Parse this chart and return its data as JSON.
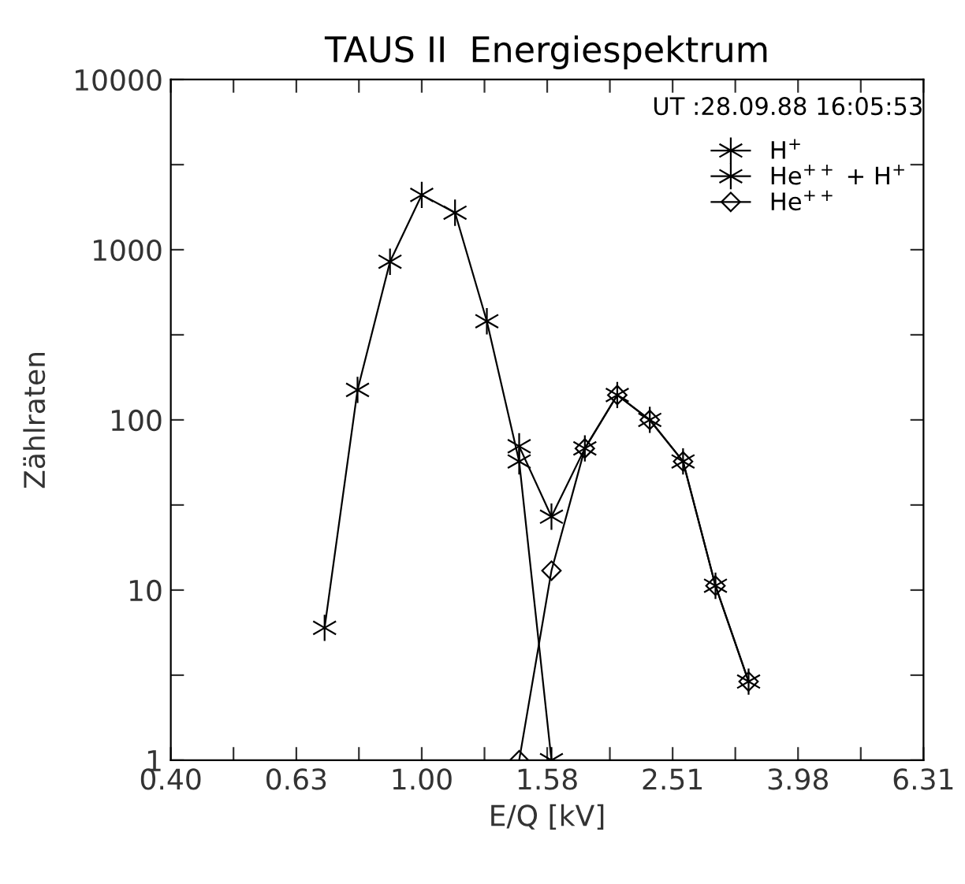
{
  "chart_data": {
    "type": "line",
    "title": "TAUS II  Energiespektrum",
    "xlabel": "E/Q [kV]",
    "ylabel": "Zählraten",
    "log": "xy",
    "grid": false,
    "legend": "top right",
    "annotations": [
      "UT :28.09.88 16:05:53"
    ],
    "xlim": [
      0.398,
      6.31
    ],
    "xticks": [
      {
        "value": 0.398,
        "label": "0.40"
      },
      {
        "value": 0.501,
        "label": null
      },
      {
        "value": 0.631,
        "label": "0.63"
      },
      {
        "value": 0.794,
        "label": null
      },
      {
        "value": 1.0,
        "label": "1.00"
      },
      {
        "value": 1.259,
        "label": null
      },
      {
        "value": 1.585,
        "label": "1.58"
      },
      {
        "value": 1.995,
        "label": null
      },
      {
        "value": 2.512,
        "label": "2.51"
      },
      {
        "value": 3.162,
        "label": null
      },
      {
        "value": 3.981,
        "label": "3.98"
      },
      {
        "value": 5.012,
        "label": null
      },
      {
        "value": 6.31,
        "label": "6.31"
      }
    ],
    "ylim": [
      1,
      10000
    ],
    "yticks": [
      1,
      {
        "value": 3.162,
        "label": null
      },
      10,
      {
        "value": 31.62,
        "label": null
      },
      100,
      {
        "value": 316.2,
        "label": null
      },
      1000,
      {
        "value": 3162,
        "label": null
      },
      10000
    ],
    "series": [
      {
        "name": "H$^{+}$",
        "color": "#000000",
        "marker": "cross",
        "x": [
          0.7,
          0.79,
          0.89,
          1.0,
          1.13,
          1.27,
          1.43,
          1.61
        ],
        "values": [
          6,
          150,
          850,
          2100,
          1650,
          380,
          57,
          1
        ]
      },
      {
        "name": "He$^{++}$ + H$^{+}$",
        "color": "#000000",
        "marker": "cross",
        "x": [
          1.43,
          1.61,
          1.82,
          2.05,
          2.31,
          2.61,
          2.94,
          3.32
        ],
        "values": [
          70,
          27,
          68,
          140,
          100,
          57,
          10.6,
          2.9
        ]
      },
      {
        "name": "He$^{++}$",
        "color": "#000000",
        "marker": "diamond",
        "x": [
          1.43,
          1.61,
          1.82,
          2.05,
          2.31,
          2.61,
          2.94,
          3.32
        ],
        "values": [
          1,
          13,
          68,
          140,
          100,
          57,
          10.6,
          2.9
        ]
      }
    ]
  }
}
